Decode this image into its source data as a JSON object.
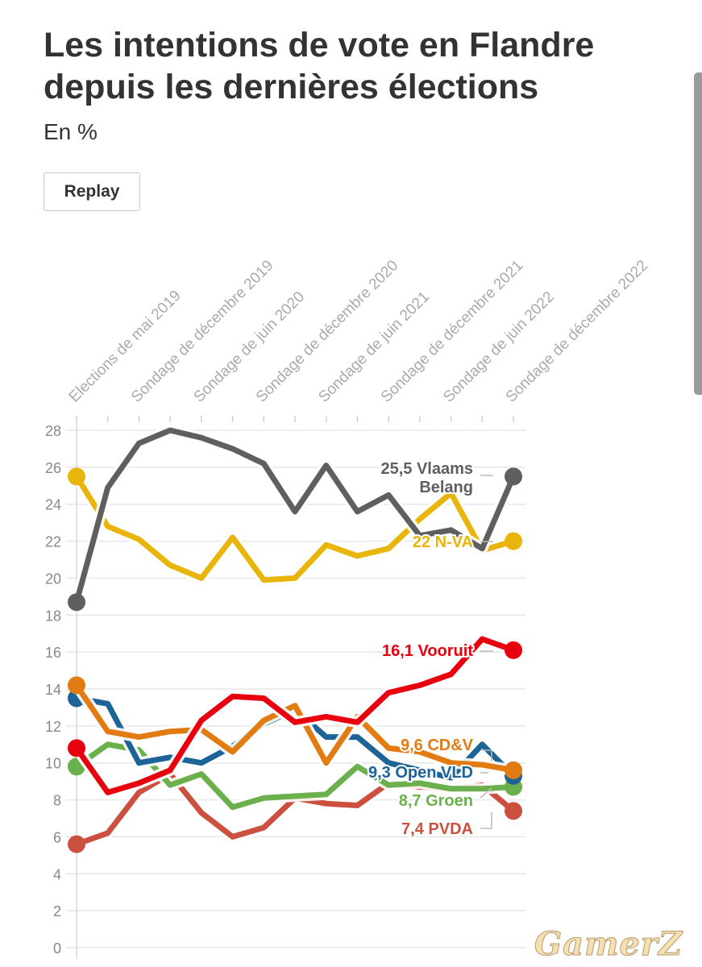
{
  "title": "Les intentions de vote en Flandre depuis les dernières élections",
  "subtitle": "En %",
  "replay_label": "Replay",
  "watermark": "GamerZ",
  "chart_data": {
    "type": "line",
    "title": "Les intentions de vote en Flandre depuis les dernières élections",
    "subtitle": "En %",
    "ylabel": "",
    "xlabel": "",
    "ylim": [
      0,
      28
    ],
    "yticks": [
      0,
      2,
      4,
      6,
      8,
      10,
      12,
      14,
      16,
      18,
      20,
      22,
      24,
      26,
      28
    ],
    "grid": true,
    "xlabels": [
      "Elections de mai 2019",
      "Sondage de décembre 2019",
      "Sondage de juin 2020",
      "Sondage de décembre 2020",
      "Sondage de juin 2021",
      "Sondage de décembre 2021",
      "Sondage de juin 2022",
      "Sondage de décembre 2022"
    ],
    "x_count": 15,
    "series": [
      {
        "name": "Vlaams Belang",
        "color": "#5f5f5f",
        "values": [
          18.7,
          24.9,
          27.3,
          28.0,
          27.6,
          27.0,
          26.2,
          23.6,
          26.1,
          23.6,
          24.5,
          22.3,
          22.6,
          21.6,
          25.5
        ],
        "label": [
          "25,5 Vlaams",
          "Belang"
        ]
      },
      {
        "name": "N-VA",
        "color": "#e9b50a",
        "values": [
          25.5,
          22.8,
          22.1,
          20.7,
          20.0,
          22.2,
          19.9,
          20.0,
          21.8,
          21.2,
          21.6,
          23.2,
          24.6,
          21.5,
          22.0
        ],
        "label": [
          "22 N-VA"
        ]
      },
      {
        "name": "Vooruit",
        "color": "#e8000e",
        "values": [
          10.8,
          8.4,
          8.9,
          9.6,
          12.3,
          13.6,
          13.5,
          12.2,
          12.5,
          12.2,
          13.8,
          14.2,
          14.8,
          16.7,
          16.1
        ],
        "label": [
          "16,1 Vooruit"
        ]
      },
      {
        "name": "CD&V",
        "color": "#e27c12",
        "values": [
          14.2,
          11.7,
          11.4,
          11.7,
          11.8,
          10.6,
          12.3,
          13.1,
          10.0,
          12.5,
          10.8,
          10.6,
          10.0,
          9.9,
          9.6
        ],
        "label": [
          "9,6 CD&V"
        ]
      },
      {
        "name": "Open VLD",
        "color": "#1c6397",
        "values": [
          13.5,
          13.2,
          10.0,
          10.3,
          10.0,
          10.9,
          12.1,
          12.9,
          11.4,
          11.4,
          10.0,
          9.6,
          9.2,
          11.0,
          9.3
        ],
        "label": [
          "9,3 Open VLD"
        ]
      },
      {
        "name": "Groen",
        "color": "#6ab04c",
        "values": [
          9.8,
          11.0,
          10.7,
          8.8,
          9.4,
          7.6,
          8.1,
          8.2,
          8.3,
          9.8,
          8.8,
          8.9,
          8.6,
          8.6,
          8.7
        ],
        "label": [
          "8,7 Groen"
        ]
      },
      {
        "name": "PVDA",
        "color": "#cc5040",
        "values": [
          5.6,
          6.2,
          8.4,
          9.4,
          7.3,
          6.0,
          6.5,
          8.1,
          7.8,
          7.7,
          8.9,
          8.7,
          8.6,
          8.8,
          7.4
        ],
        "label": [
          "7,4 PVDA"
        ]
      }
    ]
  }
}
